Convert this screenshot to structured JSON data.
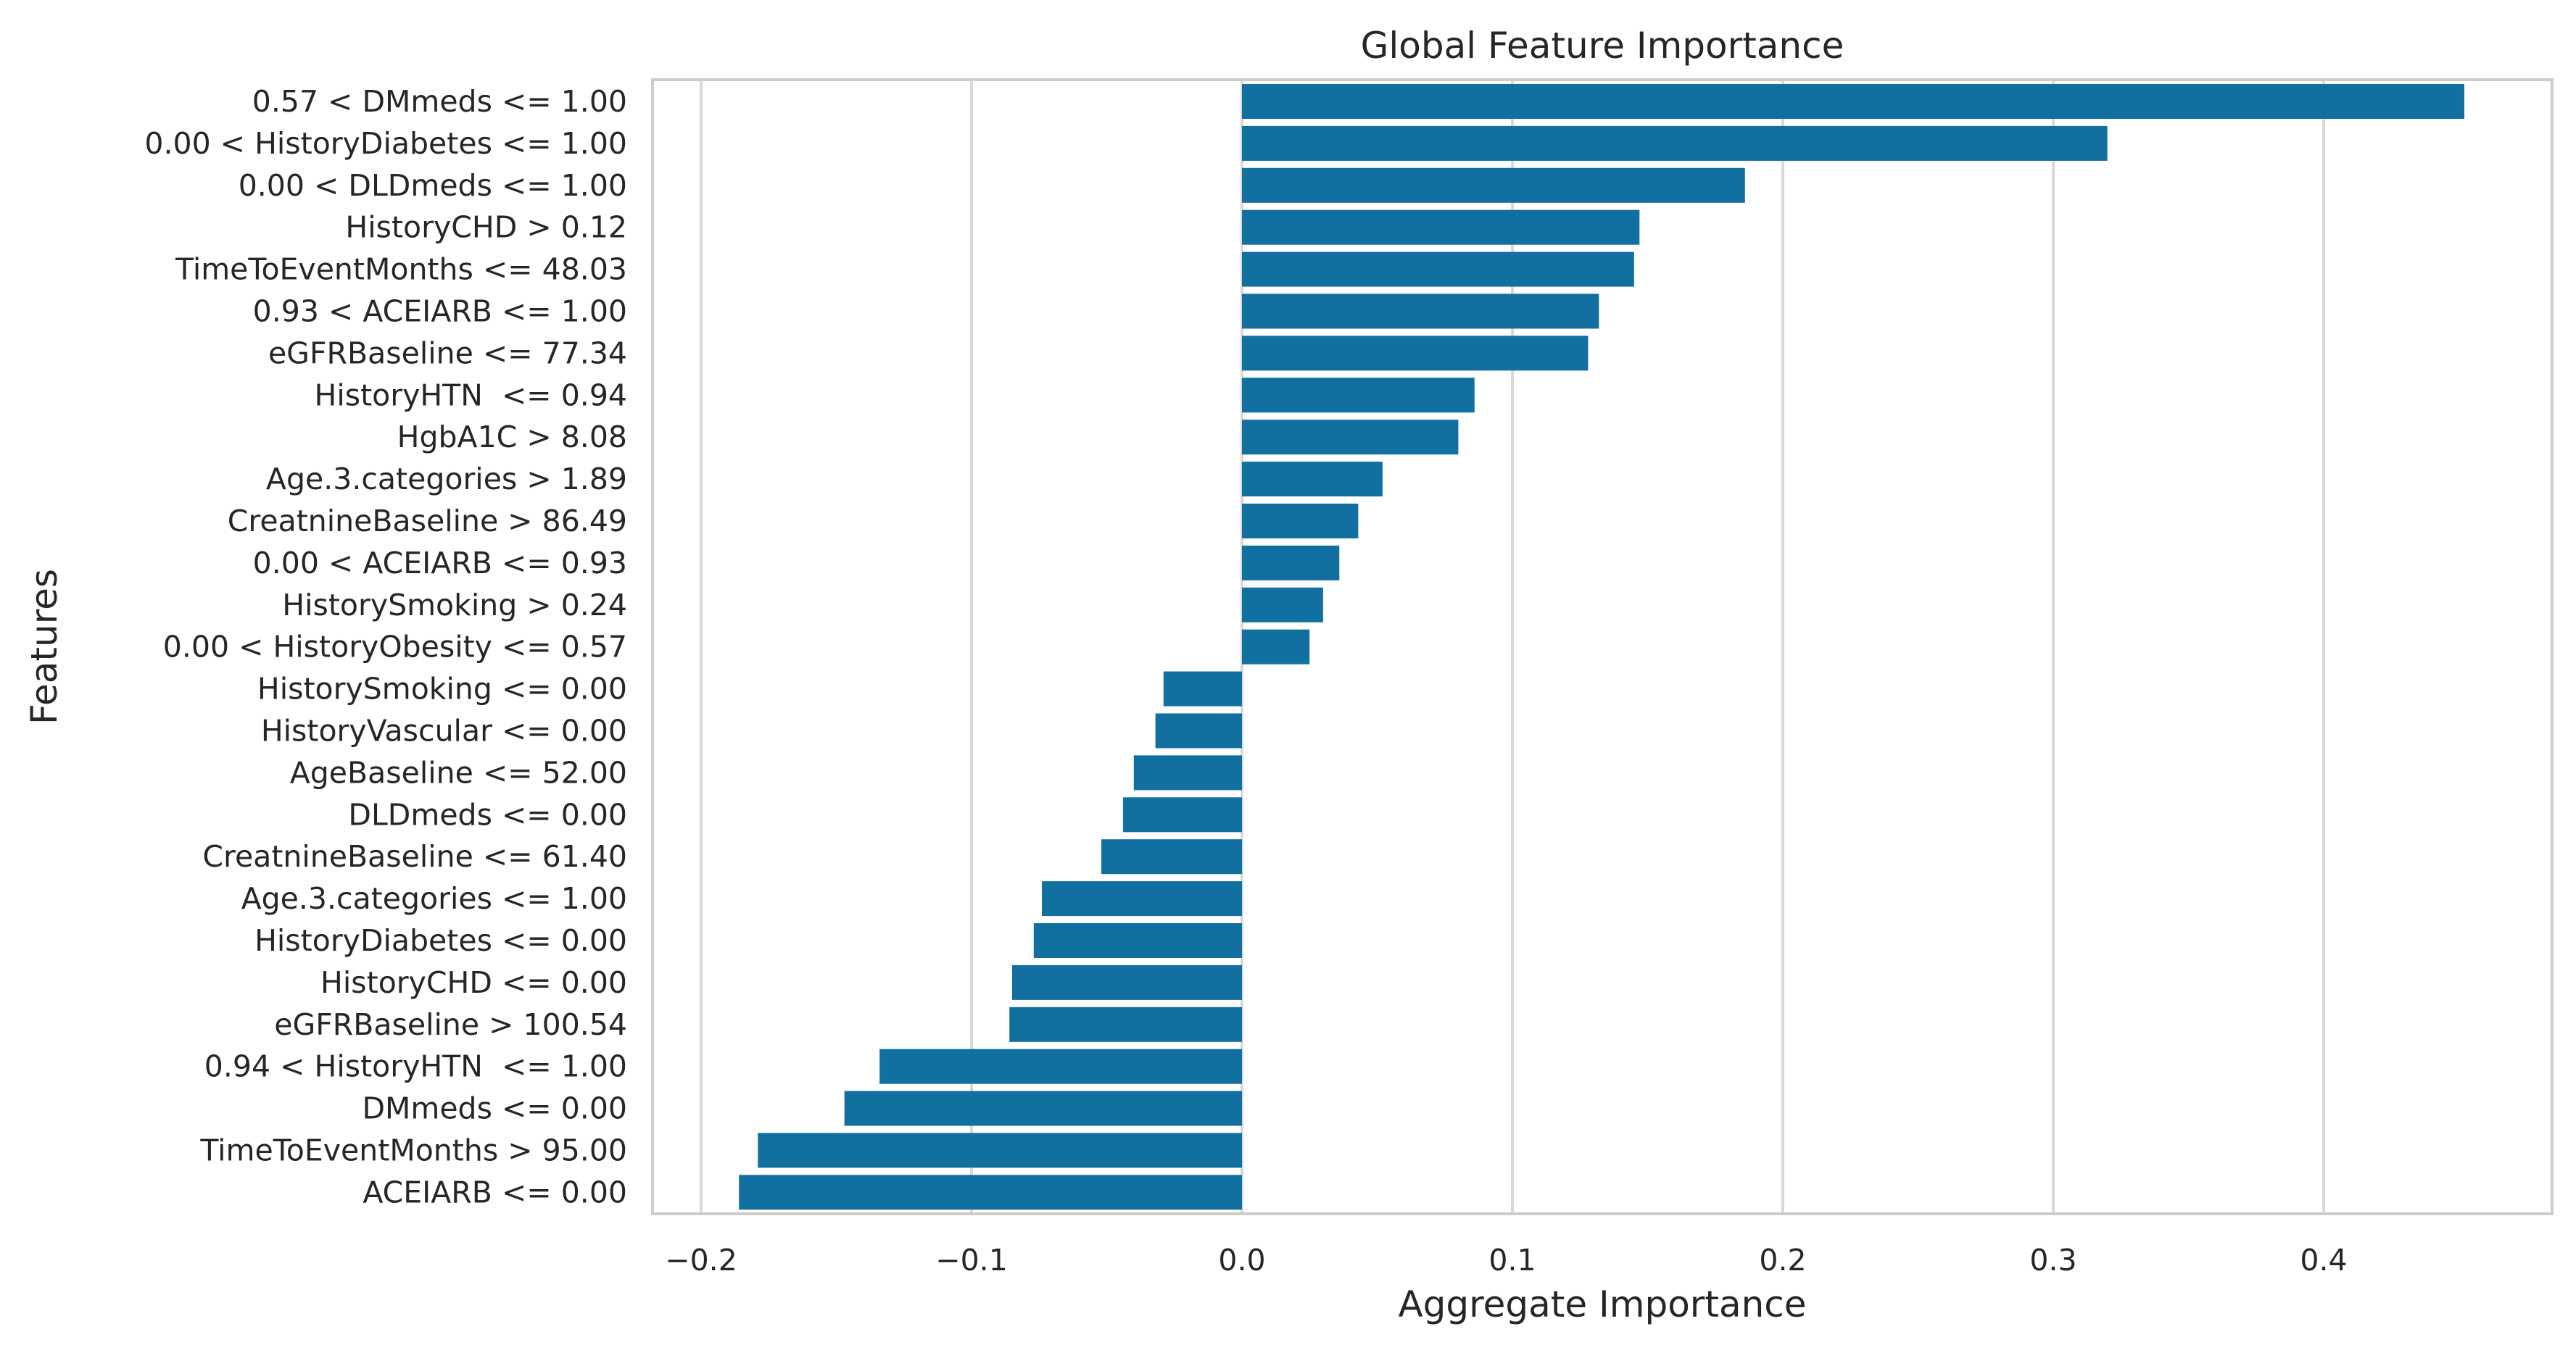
{
  "chart_data": {
    "type": "bar",
    "orientation": "horizontal",
    "title": "Global Feature Importance",
    "xlabel": "Aggregate Importance",
    "ylabel": "Features",
    "xlim": [
      -0.22,
      0.47
    ],
    "xticks": [
      -0.2,
      -0.1,
      0.0,
      0.1,
      0.2,
      0.3,
      0.4
    ],
    "xtick_labels": [
      "−0.2",
      "−0.1",
      "0.0",
      "0.1",
      "0.2",
      "0.3",
      "0.4"
    ],
    "grid": "vertical",
    "bar_color": "#1170a0",
    "categories": [
      "0.57 < DMmeds <= 1.00",
      "0.00 < HistoryDiabetes <= 1.00",
      "0.00 < DLDmeds <= 1.00",
      "HistoryCHD > 0.12",
      "TimeToEventMonths <= 48.03",
      "0.93 < ACEIARB <= 1.00",
      "eGFRBaseline <= 77.34",
      "HistoryHTN  <= 0.94",
      "HgbA1C > 8.08",
      "Age.3.categories > 1.89",
      "CreatnineBaseline > 86.49",
      "0.00 < ACEIARB <= 0.93",
      "HistorySmoking > 0.24",
      "0.00 < HistoryObesity <= 0.57",
      "HistorySmoking <= 0.00",
      "HistoryVascular <= 0.00",
      "AgeBaseline <= 52.00",
      "DLDmeds <= 0.00",
      "CreatnineBaseline <= 61.40",
      "Age.3.categories <= 1.00",
      "HistoryDiabetes <= 0.00",
      "HistoryCHD <= 0.00",
      "eGFRBaseline > 100.54",
      "0.94 < HistoryHTN  <= 1.00",
      "DMmeds <= 0.00",
      "TimeToEventMonths > 95.00",
      "ACEIARB <= 0.00"
    ],
    "values": [
      0.452,
      0.32,
      0.186,
      0.147,
      0.145,
      0.132,
      0.128,
      0.086,
      0.08,
      0.052,
      0.043,
      0.036,
      0.03,
      0.025,
      -0.029,
      -0.032,
      -0.04,
      -0.044,
      -0.052,
      -0.074,
      -0.077,
      -0.085,
      -0.086,
      -0.134,
      -0.147,
      -0.179,
      -0.186
    ]
  }
}
